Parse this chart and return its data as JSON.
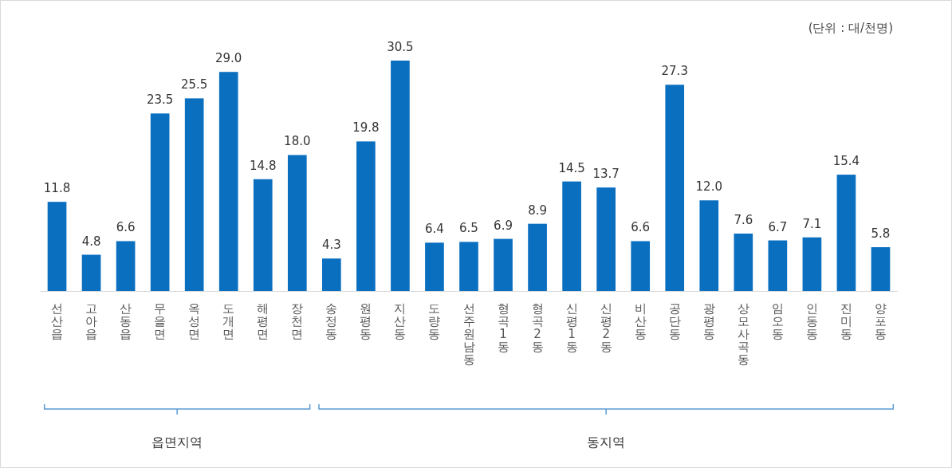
{
  "chart_data": {
    "type": "bar",
    "categories": [
      "선산읍",
      "고아읍",
      "산동읍",
      "무을면",
      "옥성면",
      "도개면",
      "해평면",
      "장천면",
      "송정동",
      "원평동",
      "지산동",
      "도량동",
      "선주원남동",
      "형곡1동",
      "형곡2동",
      "신평1동",
      "신평2동",
      "비산동",
      "공단동",
      "광평동",
      "상모사곡동",
      "임오동",
      "인동동",
      "진미동",
      "양포동"
    ],
    "values": [
      11.8,
      4.8,
      6.6,
      23.5,
      25.5,
      29.0,
      14.8,
      18.0,
      4.3,
      19.8,
      30.5,
      6.4,
      6.5,
      6.9,
      8.9,
      14.5,
      13.7,
      6.6,
      27.3,
      12.0,
      7.6,
      6.7,
      7.1,
      15.4,
      5.8
    ],
    "color": "#0b6fc0",
    "data_labels": true,
    "value_labels": [
      "11.8",
      "4.8",
      "6.6",
      "23.5",
      "25.5",
      "29.0",
      "14.8",
      "18.0",
      "4.3",
      "19.8",
      "30.5",
      "6.4",
      "6.5",
      "6.9",
      "8.9",
      "14.5",
      "13.7",
      "6.6",
      "27.3",
      "12.0",
      "7.6",
      "6.7",
      "7.1",
      "15.4",
      "5.8"
    ],
    "annotations": [
      "(단위 : 대/천명)",
      "읍면지역",
      "동지역"
    ]
  }
}
